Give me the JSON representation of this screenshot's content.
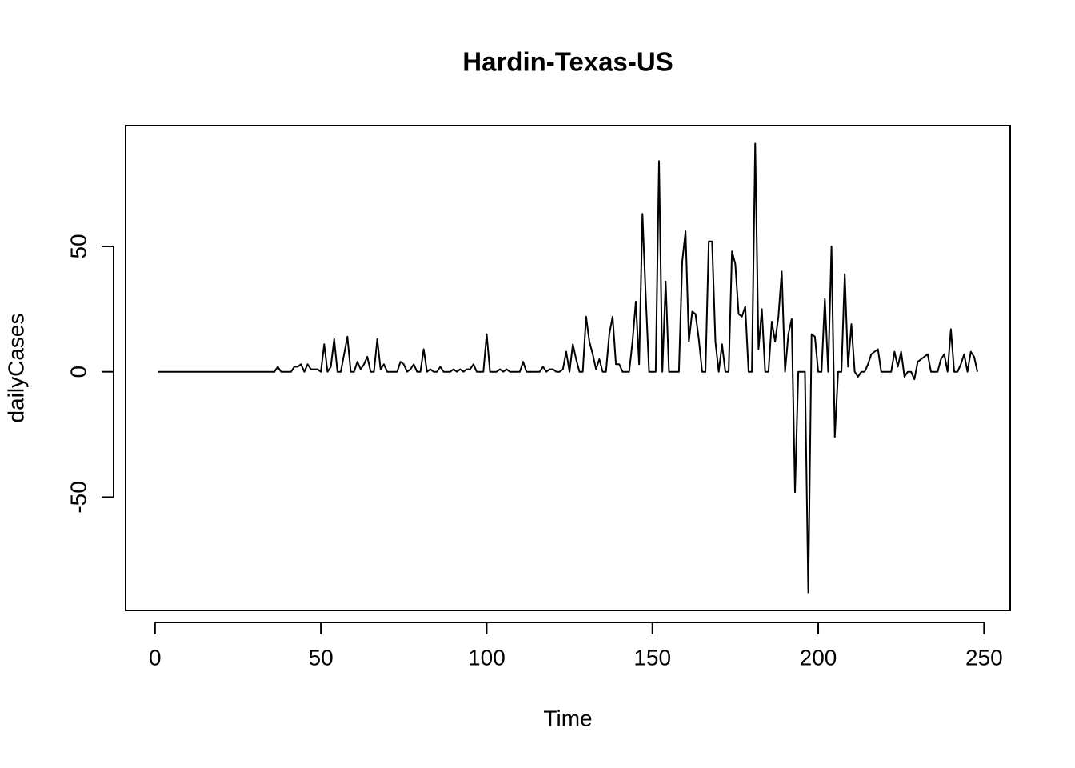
{
  "chart_data": {
    "type": "line",
    "title": "Hardin-Texas-US",
    "x_label": "Time",
    "y_label": "dailyCases",
    "color": "#000000",
    "x": [
      1,
      2,
      3,
      4,
      5,
      6,
      7,
      8,
      9,
      10,
      11,
      12,
      13,
      14,
      15,
      16,
      17,
      18,
      19,
      20,
      21,
      22,
      23,
      24,
      25,
      26,
      27,
      28,
      29,
      30,
      31,
      32,
      33,
      34,
      35,
      36,
      37,
      38,
      39,
      40,
      41,
      42,
      43,
      44,
      45,
      46,
      47,
      48,
      49,
      50,
      51,
      52,
      53,
      54,
      55,
      56,
      57,
      58,
      59,
      60,
      61,
      62,
      63,
      64,
      65,
      66,
      67,
      68,
      69,
      70,
      71,
      72,
      73,
      74,
      75,
      76,
      77,
      78,
      79,
      80,
      81,
      82,
      83,
      84,
      85,
      86,
      87,
      88,
      89,
      90,
      91,
      92,
      93,
      94,
      95,
      96,
      97,
      98,
      99,
      100,
      101,
      102,
      103,
      104,
      105,
      106,
      107,
      108,
      109,
      110,
      111,
      112,
      113,
      114,
      115,
      116,
      117,
      118,
      119,
      120,
      121,
      122,
      123,
      124,
      125,
      126,
      127,
      128,
      129,
      130,
      131,
      132,
      133,
      134,
      135,
      136,
      137,
      138,
      139,
      140,
      141,
      142,
      143,
      144,
      145,
      146,
      147,
      148,
      149,
      150,
      151,
      152,
      153,
      154,
      155,
      156,
      157,
      158,
      159,
      160,
      161,
      162,
      163,
      164,
      165,
      166,
      167,
      168,
      169,
      170,
      171,
      172,
      173,
      174,
      175,
      176,
      177,
      178,
      179,
      180,
      181,
      182,
      183,
      184,
      185,
      186,
      187,
      188,
      189,
      190,
      191,
      192,
      193,
      194,
      195,
      196,
      197,
      198,
      199,
      200,
      201,
      202,
      203,
      204,
      205,
      206,
      207,
      208,
      209,
      210,
      211,
      212,
      213,
      214,
      215,
      216,
      217,
      218,
      219,
      220,
      221,
      222,
      223,
      224,
      225,
      226,
      227,
      228,
      229,
      230,
      231,
      232,
      233,
      234,
      235,
      236,
      237,
      238,
      239,
      240,
      241,
      242,
      243,
      244,
      245,
      246,
      247,
      248
    ],
    "values": [
      0,
      0,
      0,
      0,
      0,
      0,
      0,
      0,
      0,
      0,
      0,
      0,
      0,
      0,
      0,
      0,
      0,
      0,
      0,
      0,
      0,
      0,
      0,
      0,
      0,
      0,
      0,
      0,
      0,
      0,
      0,
      0,
      0,
      0,
      0,
      0,
      2,
      0,
      0,
      0,
      0,
      2,
      2,
      3,
      0,
      3,
      1,
      1,
      1,
      0,
      11,
      0,
      2,
      13,
      0,
      0,
      7,
      14,
      0,
      0,
      4,
      1,
      3,
      6,
      0,
      0,
      13,
      1,
      3,
      0,
      0,
      0,
      0,
      4,
      3,
      0,
      1,
      3,
      0,
      0,
      9,
      0,
      1,
      0,
      0,
      2,
      0,
      0,
      0,
      1,
      0,
      1,
      0,
      1,
      1,
      3,
      0,
      0,
      0,
      15,
      0,
      0,
      0,
      1,
      0,
      1,
      0,
      0,
      0,
      0,
      4,
      0,
      0,
      0,
      0,
      0,
      2,
      0,
      1,
      1,
      0,
      0,
      1,
      8,
      0,
      11,
      5,
      0,
      0,
      22,
      12,
      7,
      1,
      5,
      0,
      0,
      15,
      22,
      3,
      3,
      0,
      0,
      0,
      12,
      28,
      3,
      63,
      30,
      0,
      0,
      0,
      84,
      0,
      36,
      0,
      0,
      0,
      0,
      44,
      56,
      12,
      24,
      23,
      13,
      0,
      0,
      52,
      52,
      12,
      0,
      11,
      0,
      0,
      48,
      43,
      23,
      22,
      26,
      0,
      0,
      91,
      9,
      25,
      0,
      0,
      20,
      12,
      22,
      40,
      0,
      15,
      21,
      -48,
      0,
      0,
      0,
      -88,
      15,
      14,
      0,
      0,
      29,
      0,
      50,
      -26,
      0,
      0,
      39,
      2,
      19,
      0,
      -2,
      0,
      0,
      3,
      7,
      8,
      9,
      0,
      0,
      0,
      0,
      8,
      2,
      8,
      -2,
      0,
      0,
      -3,
      4,
      5,
      6,
      7,
      0,
      0,
      0,
      5,
      7,
      0,
      17,
      0,
      0,
      3,
      7,
      0,
      8,
      6,
      0
    ],
    "xlim": [
      -8.88,
      257.88
    ],
    "xticks": [
      0,
      50,
      100,
      150,
      200,
      250
    ],
    "ylim": [
      -95.16,
      98.16
    ],
    "yticks": [
      -50,
      0,
      50
    ]
  }
}
